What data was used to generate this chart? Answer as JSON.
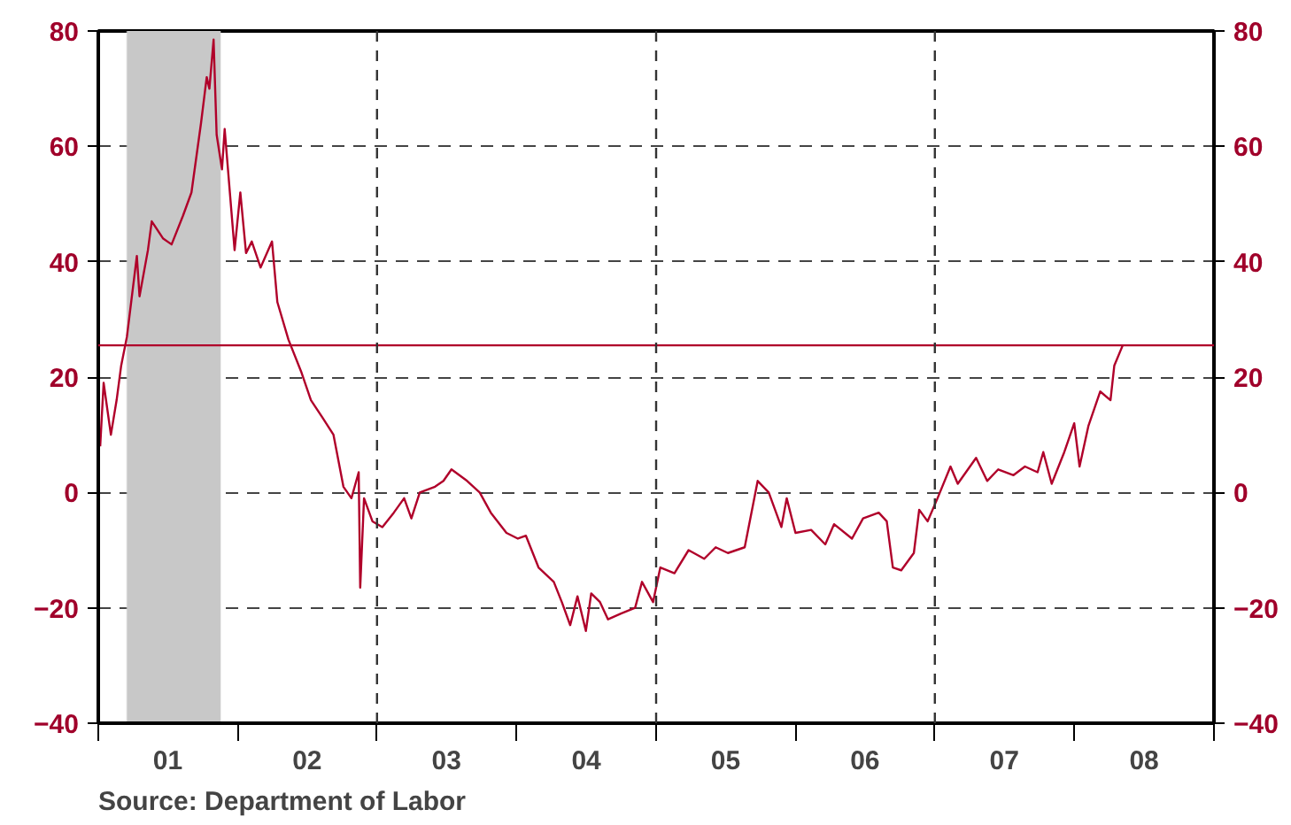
{
  "chart_data": {
    "type": "line",
    "x": [
      "2001-01-06",
      "2001-01-15",
      "2001-02-03",
      "2001-02-18",
      "2001-03-02",
      "2001-03-17",
      "2001-04-12",
      "2001-04-19",
      "2001-05-11",
      "2001-05-21",
      "2001-06-20",
      "2001-07-12",
      "2001-08-11",
      "2001-09-02",
      "2001-09-27",
      "2001-10-12",
      "2001-10-19",
      "2001-10-30",
      "2001-11-07",
      "2001-11-21",
      "2001-11-28",
      "2001-12-24",
      "2002-01-08",
      "2002-01-23",
      "2002-02-07",
      "2002-03-02",
      "2002-04-01",
      "2002-04-15",
      "2002-05-14",
      "2002-06-16",
      "2002-07-12",
      "2002-08-11",
      "2002-09-09",
      "2002-10-05",
      "2002-10-26",
      "2002-11-14",
      "2002-11-18",
      "2002-11-28",
      "2002-12-20",
      "2003-01-15",
      "2003-02-14",
      "2003-03-13",
      "2003-04-01",
      "2003-04-23",
      "2003-06-02",
      "2003-06-24",
      "2003-07-15",
      "2003-08-25",
      "2003-09-27",
      "2003-10-26",
      "2003-12-06",
      "2004-01-05",
      "2004-01-26",
      "2004-02-28",
      "2004-04-08",
      "2004-04-29",
      "2004-05-21",
      "2004-06-09",
      "2004-07-01",
      "2004-07-15",
      "2004-08-07",
      "2004-08-28",
      "2004-10-01",
      "2004-11-07",
      "2004-11-25",
      "2004-12-24",
      "2005-01-12",
      "2005-02-18",
      "2005-03-27",
      "2005-05-07",
      "2005-06-06",
      "2005-07-08",
      "2005-08-21",
      "2005-09-24",
      "2005-10-23",
      "2005-11-25",
      "2005-12-09",
      "2006-01-01",
      "2006-02-11",
      "2006-03-20",
      "2006-04-12",
      "2006-05-29",
      "2006-06-27",
      "2006-08-07",
      "2006-08-28",
      "2006-09-13",
      "2006-10-05",
      "2006-11-07",
      "2006-11-21",
      "2006-12-13",
      "2007-01-08",
      "2007-02-11",
      "2007-03-02",
      "2007-04-19",
      "2007-05-18",
      "2007-06-16",
      "2007-07-26",
      "2007-08-25",
      "2007-09-27",
      "2007-10-12",
      "2007-11-03",
      "2007-12-06",
      "2008-01-01",
      "2008-01-15",
      "2008-02-07",
      "2008-03-09",
      "2008-04-05",
      "2008-04-15",
      "2008-05-07"
    ],
    "series": [
      {
        "color": "#b0002a",
        "values": [
          8,
          19,
          10,
          16,
          22,
          27,
          41,
          34,
          42,
          47,
          44,
          43,
          48,
          52,
          64,
          72,
          70,
          78.5,
          62,
          56,
          63,
          42,
          52,
          41.5,
          43.5,
          39,
          43.5,
          33,
          26.5,
          21,
          16,
          13,
          10,
          1,
          -1,
          3.5,
          -16.5,
          -1,
          -5,
          -6,
          -3.5,
          -1,
          -4.5,
          0,
          1,
          2,
          4,
          2,
          0,
          -3.5,
          -7,
          -8,
          -7.5,
          -13,
          -15.5,
          -19,
          -23,
          -18,
          -24,
          -17.5,
          -19,
          -22,
          -21,
          -20,
          -15.5,
          -19,
          -13,
          -14,
          -10,
          -11.5,
          -9.5,
          -10.5,
          -9.5,
          2,
          0,
          -6,
          -1,
          -7,
          -6.5,
          -9,
          -5.5,
          -8,
          -4.5,
          -3.5,
          -5,
          -13,
          -13.5,
          -10.5,
          -3,
          -5,
          -1,
          4.5,
          1.5,
          6,
          2,
          4,
          3,
          4.5,
          3.5,
          7,
          1.5,
          7,
          12,
          4.5,
          11.5,
          17.5,
          16,
          22,
          25.5
        ]
      }
    ],
    "xlim": [
      "2001-01-01",
      "2009-01-01"
    ],
    "xticks": [
      {
        "value": "2001-01-01",
        "label": null
      },
      {
        "value": "2001-07-02",
        "label": "01"
      },
      {
        "value": "2002-01-01",
        "label": null
      },
      {
        "value": "2002-07-02",
        "label": "02"
      },
      {
        "value": "2003-01-01",
        "label": null
      },
      {
        "value": "2003-07-02",
        "label": "03"
      },
      {
        "value": "2004-01-01",
        "label": null
      },
      {
        "value": "2004-07-02",
        "label": "04"
      },
      {
        "value": "2005-01-01",
        "label": null
      },
      {
        "value": "2005-07-02",
        "label": "05"
      },
      {
        "value": "2006-01-01",
        "label": null
      },
      {
        "value": "2006-07-02",
        "label": "06"
      },
      {
        "value": "2007-01-01",
        "label": null
      },
      {
        "value": "2007-07-02",
        "label": "07"
      },
      {
        "value": "2008-01-01",
        "label": null
      },
      {
        "value": "2008-07-02",
        "label": "08"
      },
      {
        "value": "2009-01-01",
        "label": null
      }
    ],
    "ylim": [
      -40,
      80
    ],
    "yticks": [
      -40,
      -20,
      0,
      20,
      40,
      60,
      80
    ],
    "y2lim": [
      -40,
      80
    ],
    "y2ticks": [
      -40,
      -20,
      0,
      20,
      40,
      60,
      80
    ],
    "grid": "y",
    "line_style": "solid",
    "bands": [
      {
        "axis": "x",
        "from": "2001-03-17",
        "to": "2001-11-17",
        "color": "#c8c8c8"
      }
    ],
    "ref_lines": [
      {
        "axis": "y",
        "value": 25.5,
        "color": "#b0002a",
        "line_style": "solid"
      },
      {
        "axis": "x",
        "value": "2003-01-01",
        "color": "#333333",
        "line_style": "dashed"
      },
      {
        "axis": "x",
        "value": "2005-01-01",
        "color": "#333333",
        "line_style": "dashed"
      },
      {
        "axis": "x",
        "value": "2007-01-01",
        "color": "#333333",
        "line_style": "dashed"
      }
    ],
    "annotations": [
      "Source:  Department of Labor"
    ]
  }
}
